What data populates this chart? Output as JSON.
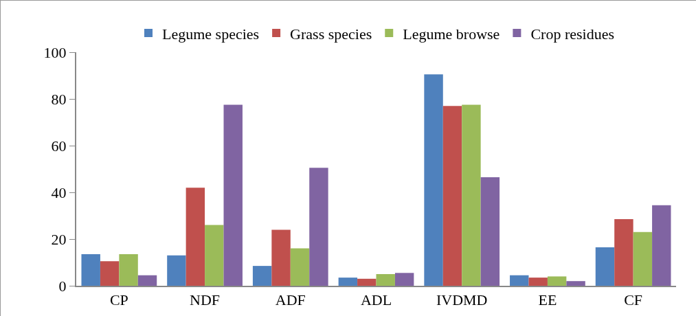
{
  "chart_data": {
    "type": "bar",
    "categories": [
      "CP",
      "NDF",
      "ADF",
      "ADL",
      "IVDMD",
      "EE",
      "CF"
    ],
    "series": [
      {
        "name": "Legume species",
        "color": "#4f81bd",
        "values": [
          13.5,
          13,
          8.5,
          3.5,
          90.5,
          4.5,
          16.5
        ]
      },
      {
        "name": "Grass species",
        "color": "#c0504d",
        "values": [
          10.5,
          42,
          24,
          3,
          77,
          3.5,
          28.5
        ]
      },
      {
        "name": "Legume browse",
        "color": "#9bbb59",
        "values": [
          13.5,
          26,
          16,
          5,
          77.5,
          4,
          23
        ]
      },
      {
        "name": "Crop residues",
        "color": "#8064a2",
        "values": [
          4.5,
          77.5,
          50.5,
          5.5,
          46.5,
          2,
          34.5
        ]
      }
    ],
    "ylim": [
      0,
      100
    ],
    "yticks": [
      0,
      20,
      40,
      60,
      80,
      100
    ],
    "grid": false,
    "legend": "top"
  }
}
